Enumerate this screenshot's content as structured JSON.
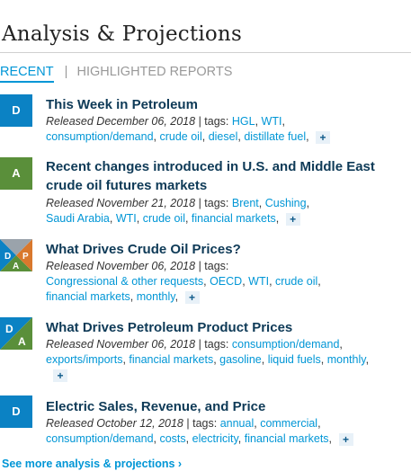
{
  "header": {
    "title": "Analysis & Projections"
  },
  "tabs": {
    "recent": "RECENT",
    "separator": "|",
    "highlighted": "HIGHLIGHTED REPORTS"
  },
  "colors": {
    "blue_icon": "#0b82c4",
    "green_icon": "#5a8f3a",
    "orange_icon": "#d9782d",
    "gray_icon": "#9aa3ab",
    "link": "#0096d6",
    "title": "#0e3a57"
  },
  "items": [
    {
      "icon_letters": [
        "D"
      ],
      "title": "This Week in Petroleum",
      "released": "Released December 06, 2018",
      "tags_label": "| tags:",
      "tags": [
        "HGL",
        "WTI",
        "consumption/demand",
        "crude oil",
        "diesel",
        "distillate fuel"
      ],
      "plus": "+"
    },
    {
      "icon_letters": [
        "A"
      ],
      "title": "Recent changes introduced in U.S. and Middle East crude oil futures markets",
      "released": "Released November 21, 2018",
      "tags_label": "| tags:",
      "tags": [
        "Brent",
        "Cushing",
        "Saudi Arabia",
        "WTI",
        "crude oil",
        "financial markets"
      ],
      "plus": "+"
    },
    {
      "icon_letters": [
        "D",
        "A",
        "P"
      ],
      "title": "What Drives Crude Oil Prices?",
      "released": "Released November 06, 2018",
      "tags_label": "| tags:",
      "tags": [
        "Congressional & other requests",
        "OECD",
        "WTI",
        "crude oil",
        "financial markets",
        "monthly"
      ],
      "plus": "+"
    },
    {
      "icon_letters": [
        "D",
        "A"
      ],
      "title": "What Drives Petroleum Product Prices",
      "released": "Released November 06, 2018",
      "tags_label": "| tags:",
      "tags": [
        "consumption/demand",
        "exports/imports",
        "financial markets",
        "gasoline",
        "liquid fuels",
        "monthly"
      ],
      "plus": "+"
    },
    {
      "icon_letters": [
        "D"
      ],
      "title": "Electric Sales, Revenue, and Price",
      "released": "Released October 12, 2018",
      "tags_label": "| tags:",
      "tags": [
        "annual",
        "commercial",
        "consumption/demand",
        "costs",
        "electricity",
        "financial markets"
      ],
      "plus": "+"
    }
  ],
  "footer": {
    "see_more": "See more analysis & projections ›"
  }
}
